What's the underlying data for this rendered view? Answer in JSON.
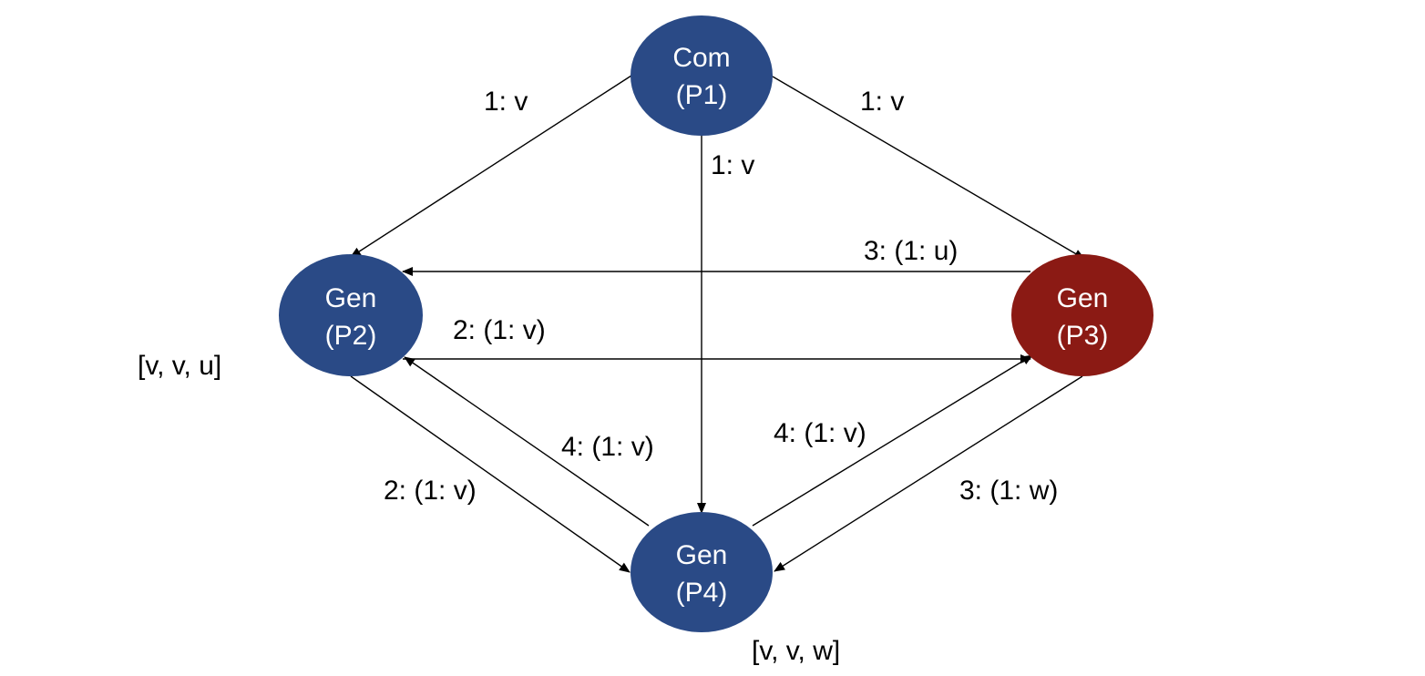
{
  "colors": {
    "loyal_node": "#2a4a86",
    "traitor_node": "#8b1a14",
    "node_text": "#ffffff",
    "edge": "#000000"
  },
  "nodes": {
    "p1": {
      "line1": "Com",
      "line2": "(P1)",
      "role": "loyal"
    },
    "p2": {
      "line1": "Gen",
      "line2": "(P2)",
      "role": "loyal"
    },
    "p3": {
      "line1": "Gen",
      "line2": "(P3)",
      "role": "traitor"
    },
    "p4": {
      "line1": "Gen",
      "line2": "(P4)",
      "role": "loyal"
    }
  },
  "edges": {
    "p1_p2": "1: v",
    "p1_p3": "1: v",
    "p1_p4": "1: v",
    "p3_p2": "3: (1: u)",
    "p2_p3": "2: (1: v)",
    "p2_p4": "2: (1: v)",
    "p4_p2": "4: (1: v)",
    "p4_p3": "4: (1: v)",
    "p3_p4": "3: (1: w)"
  },
  "decisions": {
    "p2": "[v, v, u]",
    "p4": "[v, v, w]"
  }
}
